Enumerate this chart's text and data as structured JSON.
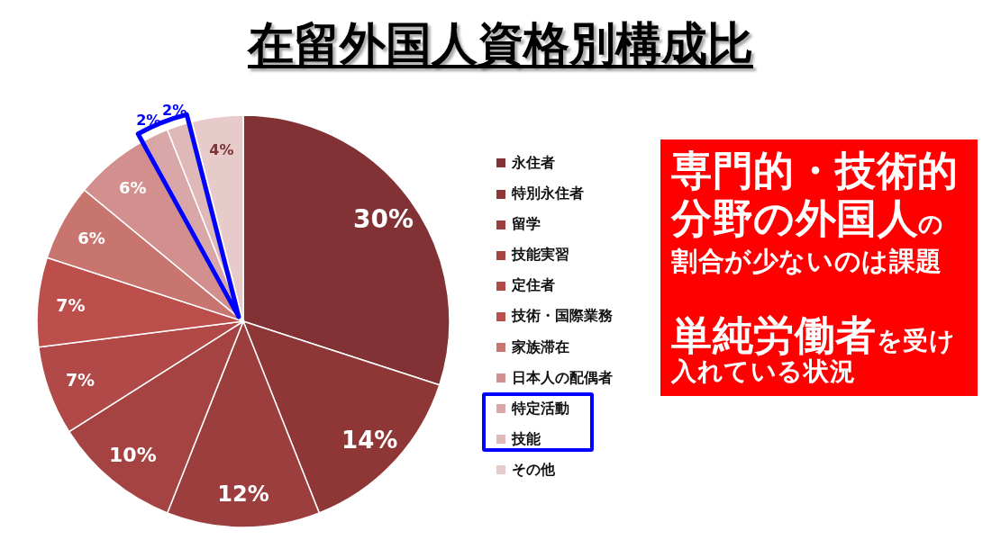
{
  "chart_data": {
    "type": "pie",
    "title": "在留外国人資格別構成比",
    "categories": [
      "永住者",
      "特別永住者",
      "留学",
      "技能実習",
      "定住者",
      "技術・国際業務",
      "家族滞在",
      "日本人の配偶者",
      "特定活動",
      "技能",
      "その他"
    ],
    "values": [
      30,
      14,
      12,
      10,
      7,
      7,
      6,
      6,
      2,
      2,
      4
    ],
    "colors": [
      "#823234",
      "#8f3737",
      "#9c3e3e",
      "#a54343",
      "#b04947",
      "#bc4f4c",
      "#c8756f",
      "#d28f8d",
      "#d9a7a7",
      "#dfb8b8",
      "#e7cbcb"
    ],
    "value_labels": [
      "30%",
      "14%",
      "12%",
      "10%",
      "7%",
      "7%",
      "6%",
      "6%",
      "2%",
      "2%",
      "4%"
    ],
    "legend": "right",
    "annotations": [
      "専門的・技術的",
      "分野の外国人",
      "の",
      "割合が少ないのは課題",
      "単純労働者",
      "を受け",
      "入れている状況"
    ]
  }
}
